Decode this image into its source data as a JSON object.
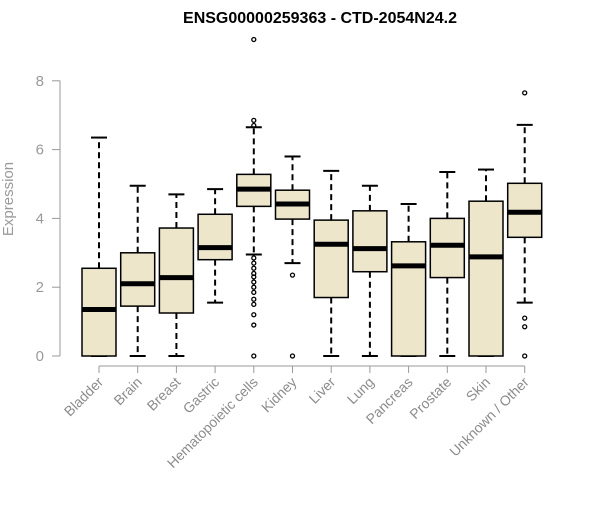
{
  "chart_data": {
    "type": "box",
    "title": "ENSG00000259363 - CTD-2054N24.2",
    "xlabel": "",
    "ylabel": "Expression",
    "ylim": [
      0,
      9.2
    ],
    "yticks": [
      0,
      2,
      4,
      6,
      8
    ],
    "grid": false,
    "legend": "none",
    "colors": {
      "box_fill": "#ede6cb",
      "box_stroke": "#000000",
      "axis": "#999999"
    },
    "categories": [
      "Bladder",
      "Brain",
      "Breast",
      "Gastric",
      "Hematopoietic cells",
      "Kidney",
      "Liver",
      "Lung",
      "Pancreas",
      "Prostate",
      "Skin",
      "Unknown / Other"
    ],
    "boxes": [
      {
        "category": "Bladder",
        "whisker_low": 0,
        "q1": 0,
        "median": 1.35,
        "q3": 2.55,
        "whisker_high": 6.35,
        "outliers": []
      },
      {
        "category": "Brain",
        "whisker_low": 0,
        "q1": 1.45,
        "median": 2.1,
        "q3": 3.0,
        "whisker_high": 4.95,
        "outliers": []
      },
      {
        "category": "Breast",
        "whisker_low": 0,
        "q1": 1.25,
        "median": 2.28,
        "q3": 3.72,
        "whisker_high": 4.7,
        "outliers": []
      },
      {
        "category": "Gastric",
        "whisker_low": 1.55,
        "q1": 2.8,
        "median": 3.15,
        "q3": 4.12,
        "whisker_high": 4.85,
        "outliers": []
      },
      {
        "category": "Hematopoietic cells",
        "whisker_low": 2.95,
        "q1": 4.35,
        "median": 4.85,
        "q3": 5.28,
        "whisker_high": 6.65,
        "outliers": [
          9.2,
          6.85,
          6.7,
          2.85,
          2.7,
          2.55,
          2.4,
          2.3,
          2.15,
          2.0,
          1.85,
          1.65,
          1.5,
          1.2,
          0.9,
          0
        ]
      },
      {
        "category": "Kidney",
        "whisker_low": 2.7,
        "q1": 3.98,
        "median": 4.42,
        "q3": 4.82,
        "whisker_high": 5.8,
        "outliers": [
          2.35,
          0
        ]
      },
      {
        "category": "Liver",
        "whisker_low": 0,
        "q1": 1.7,
        "median": 3.25,
        "q3": 3.95,
        "whisker_high": 5.38,
        "outliers": []
      },
      {
        "category": "Lung",
        "whisker_low": 0,
        "q1": 2.45,
        "median": 3.12,
        "q3": 4.22,
        "whisker_high": 4.95,
        "outliers": []
      },
      {
        "category": "Pancreas",
        "whisker_low": 0,
        "q1": 0,
        "median": 2.62,
        "q3": 3.32,
        "whisker_high": 4.42,
        "outliers": []
      },
      {
        "category": "Prostate",
        "whisker_low": 0,
        "q1": 2.28,
        "median": 3.22,
        "q3": 4.0,
        "whisker_high": 5.35,
        "outliers": []
      },
      {
        "category": "Skin",
        "whisker_low": 0,
        "q1": 0,
        "median": 2.88,
        "q3": 4.5,
        "whisker_high": 5.42,
        "outliers": []
      },
      {
        "category": "Unknown / Other",
        "whisker_low": 1.55,
        "q1": 3.45,
        "median": 4.18,
        "q3": 5.02,
        "whisker_high": 6.72,
        "outliers": [
          7.65,
          1.1,
          0.85,
          0
        ]
      }
    ]
  }
}
